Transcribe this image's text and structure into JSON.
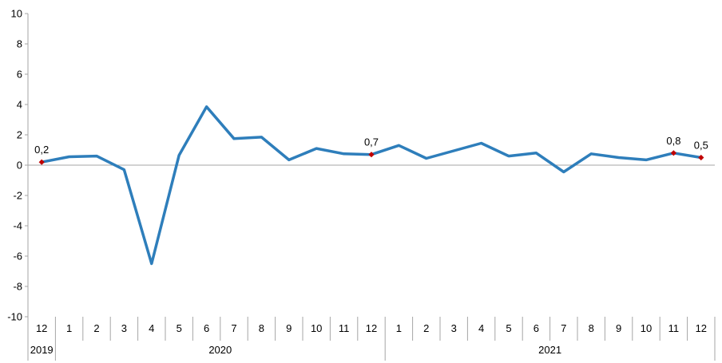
{
  "chart_data": {
    "type": "line",
    "x": [
      {
        "month": "12",
        "year": "2019"
      },
      {
        "month": "1",
        "year": "2020"
      },
      {
        "month": "2",
        "year": "2020"
      },
      {
        "month": "3",
        "year": "2020"
      },
      {
        "month": "4",
        "year": "2020"
      },
      {
        "month": "5",
        "year": "2020"
      },
      {
        "month": "6",
        "year": "2020"
      },
      {
        "month": "7",
        "year": "2020"
      },
      {
        "month": "8",
        "year": "2020"
      },
      {
        "month": "9",
        "year": "2020"
      },
      {
        "month": "10",
        "year": "2020"
      },
      {
        "month": "11",
        "year": "2020"
      },
      {
        "month": "12",
        "year": "2020"
      },
      {
        "month": "1",
        "year": "2021"
      },
      {
        "month": "2",
        "year": "2021"
      },
      {
        "month": "3",
        "year": "2021"
      },
      {
        "month": "4",
        "year": "2021"
      },
      {
        "month": "5",
        "year": "2021"
      },
      {
        "month": "6",
        "year": "2021"
      },
      {
        "month": "7",
        "year": "2021"
      },
      {
        "month": "8",
        "year": "2021"
      },
      {
        "month": "9",
        "year": "2021"
      },
      {
        "month": "10",
        "year": "2021"
      },
      {
        "month": "11",
        "year": "2021"
      },
      {
        "month": "12",
        "year": "2021"
      }
    ],
    "years": [
      "2019",
      "2020",
      "2021"
    ],
    "values": [
      0.2,
      0.55,
      0.6,
      -0.3,
      -6.5,
      0.65,
      3.85,
      1.75,
      1.85,
      0.35,
      1.1,
      0.75,
      0.7,
      1.3,
      0.45,
      0.95,
      1.45,
      0.6,
      0.8,
      -0.45,
      0.75,
      0.5,
      0.35,
      0.8,
      0.5
    ],
    "labeled_points": [
      {
        "index": 0,
        "label": "0,2"
      },
      {
        "index": 12,
        "label": "0,7"
      },
      {
        "index": 23,
        "label": "0,8"
      },
      {
        "index": 24,
        "label": "0,5"
      }
    ],
    "yticks": [
      "10",
      "8",
      "6",
      "4",
      "2",
      "0",
      "-2",
      "-4",
      "-6",
      "-8",
      "-10"
    ],
    "ylim": [
      -10,
      10
    ],
    "title": "",
    "xlabel": "",
    "ylabel": "",
    "grid": false,
    "legend": "none",
    "colors": {
      "line": "#2e7ebb",
      "marker": "#c00000",
      "axis": "#a6a6a6"
    }
  }
}
